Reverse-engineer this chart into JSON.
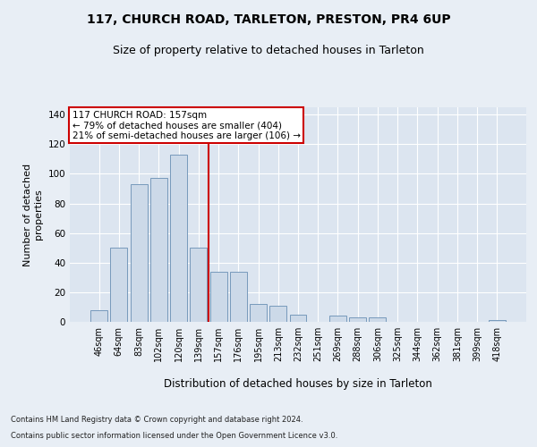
{
  "title1": "117, CHURCH ROAD, TARLETON, PRESTON, PR4 6UP",
  "title2": "Size of property relative to detached houses in Tarleton",
  "xlabel": "Distribution of detached houses by size in Tarleton",
  "ylabel": "Number of detached\nproperties",
  "footer1": "Contains HM Land Registry data © Crown copyright and database right 2024.",
  "footer2": "Contains public sector information licensed under the Open Government Licence v3.0.",
  "categories": [
    "46sqm",
    "64sqm",
    "83sqm",
    "102sqm",
    "120sqm",
    "139sqm",
    "157sqm",
    "176sqm",
    "195sqm",
    "213sqm",
    "232sqm",
    "251sqm",
    "269sqm",
    "288sqm",
    "306sqm",
    "325sqm",
    "344sqm",
    "362sqm",
    "381sqm",
    "399sqm",
    "418sqm"
  ],
  "values": [
    8,
    50,
    93,
    97,
    113,
    50,
    34,
    34,
    12,
    11,
    5,
    0,
    4,
    3,
    3,
    0,
    0,
    0,
    0,
    0,
    1
  ],
  "bar_color": "#ccd9e8",
  "bar_edge_color": "#7799bb",
  "highlight_line_index": 6,
  "highlight_label": "117 CHURCH ROAD: 157sqm",
  "highlight_sub1": "← 79% of detached houses are smaller (404)",
  "highlight_sub2": "21% of semi-detached houses are larger (106) →",
  "annotation_box_color": "#cc0000",
  "ylim": [
    0,
    145
  ],
  "yticks": [
    0,
    20,
    40,
    60,
    80,
    100,
    120,
    140
  ],
  "background_color": "#e8eef5",
  "plot_background": "#dce5f0",
  "grid_color": "#ffffff",
  "title1_fontsize": 10,
  "title2_fontsize": 9,
  "xlabel_fontsize": 8.5,
  "ylabel_fontsize": 8,
  "tick_fontsize": 7,
  "footer_fontsize": 6,
  "ann_fontsize": 7.5
}
